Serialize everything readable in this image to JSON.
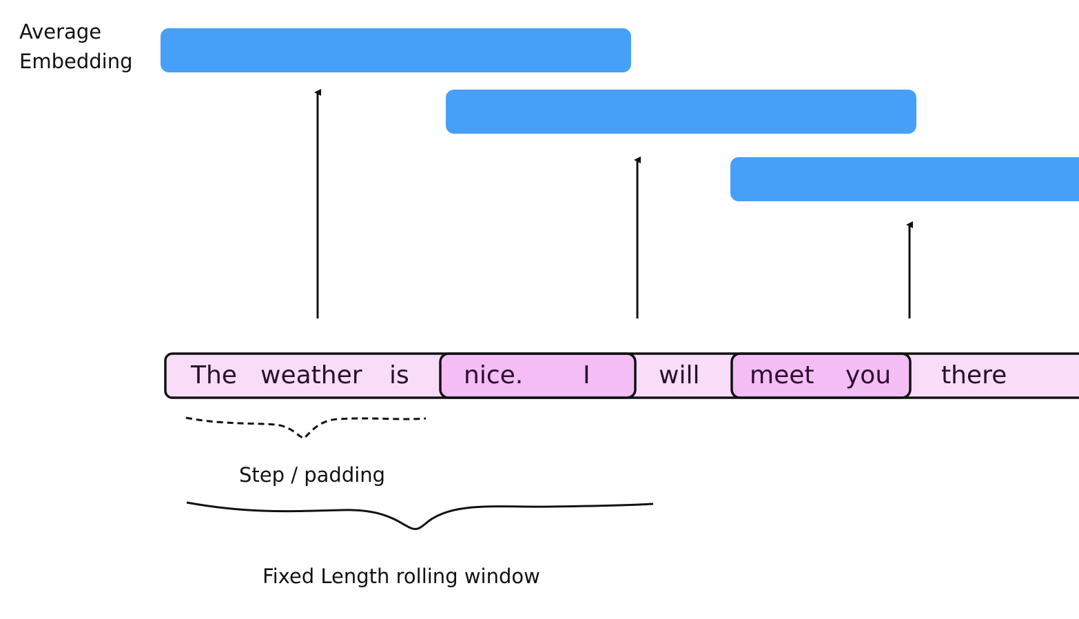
{
  "embedding_label": {
    "line1": "Average",
    "line2": "Embedding"
  },
  "tokens": {
    "t0": "The",
    "t1": "weather",
    "t2": "is",
    "t3": "nice.",
    "t4": "I",
    "t5": "will",
    "t6": "meet",
    "t7": "you",
    "t8": "there"
  },
  "braces": {
    "step_label": "Step / padding",
    "window_label": "Fixed Length rolling window"
  },
  "colors": {
    "embedding_bar": "#46a0f8",
    "token_strip": "#f8dcf8",
    "overlap_highlight": "#f4bdf6",
    "outline": "#111111"
  }
}
